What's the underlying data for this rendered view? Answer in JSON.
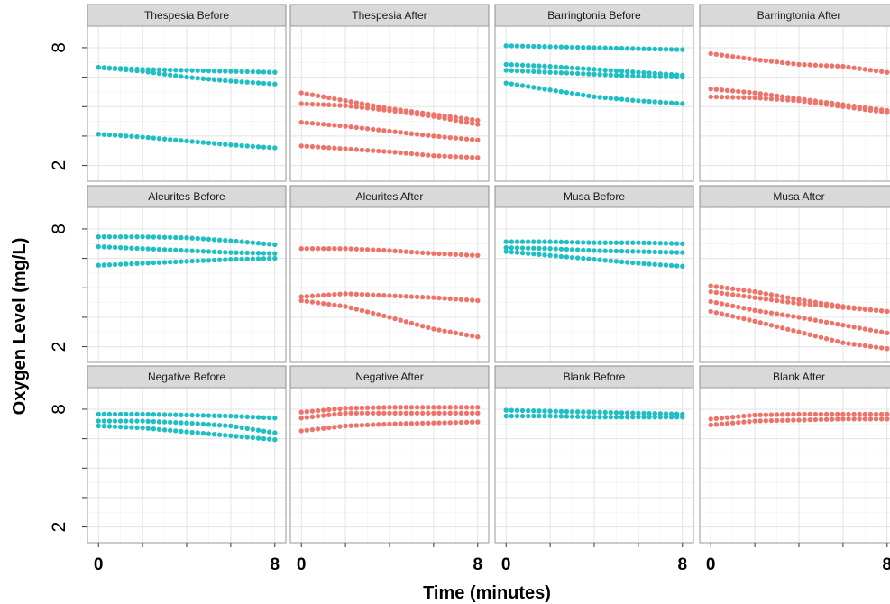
{
  "chart_data": {
    "type": "scatter",
    "xlabel": "Time (minutes)",
    "ylabel": "Oxygen Level (mg/L)",
    "xlim": [
      -0.5,
      8.5
    ],
    "ylim": [
      1.2,
      9.1
    ],
    "x_ticks_labeled": [
      0,
      8
    ],
    "x_ticks_all": [
      0,
      2,
      4,
      6,
      8
    ],
    "y_ticks_labeled": [
      2,
      8
    ],
    "y_ticks_all": [
      2,
      3.5,
      5,
      6.5,
      8
    ],
    "grid": true,
    "colors": {
      "Before": "#1fbfc3",
      "After": "#f0736a"
    },
    "panels": [
      {
        "title": "Thespesia Before",
        "condition": "Before",
        "series": [
          {
            "values": [
              [
                0,
                7.0
              ],
              [
                2,
                6.9
              ],
              [
                4,
                6.85
              ],
              [
                6,
                6.8
              ],
              [
                8,
                6.75
              ]
            ]
          },
          {
            "values": [
              [
                0,
                7.0
              ],
              [
                2,
                6.8
              ],
              [
                4,
                6.5
              ],
              [
                6,
                6.3
              ],
              [
                8,
                6.15
              ]
            ]
          },
          {
            "values": [
              [
                0,
                3.6
              ],
              [
                2,
                3.45
              ],
              [
                4,
                3.25
              ],
              [
                6,
                3.05
              ],
              [
                8,
                2.9
              ]
            ]
          }
        ]
      },
      {
        "title": "Thespesia After",
        "condition": "After",
        "series": [
          {
            "values": [
              [
                0,
                5.7
              ],
              [
                2,
                5.3
              ],
              [
                4,
                4.9
              ],
              [
                6,
                4.6
              ],
              [
                8,
                4.3
              ]
            ]
          },
          {
            "values": [
              [
                0,
                5.15
              ],
              [
                2,
                5.05
              ],
              [
                4,
                4.8
              ],
              [
                6,
                4.5
              ],
              [
                8,
                4.1
              ]
            ]
          },
          {
            "values": [
              [
                0,
                4.2
              ],
              [
                2,
                4.0
              ],
              [
                4,
                3.75
              ],
              [
                6,
                3.5
              ],
              [
                8,
                3.3
              ]
            ]
          },
          {
            "values": [
              [
                0,
                3.0
              ],
              [
                2,
                2.85
              ],
              [
                4,
                2.7
              ],
              [
                6,
                2.5
              ],
              [
                8,
                2.4
              ]
            ]
          }
        ]
      },
      {
        "title": "Barringtonia Before",
        "condition": "Before",
        "series": [
          {
            "values": [
              [
                0,
                8.1
              ],
              [
                2,
                8.05
              ],
              [
                4,
                8.0
              ],
              [
                6,
                7.95
              ],
              [
                8,
                7.9
              ]
            ]
          },
          {
            "values": [
              [
                0,
                7.15
              ],
              [
                2,
                7.05
              ],
              [
                4,
                6.9
              ],
              [
                6,
                6.75
              ],
              [
                8,
                6.6
              ]
            ]
          },
          {
            "values": [
              [
                0,
                6.85
              ],
              [
                2,
                6.75
              ],
              [
                4,
                6.65
              ],
              [
                6,
                6.55
              ],
              [
                8,
                6.5
              ]
            ]
          },
          {
            "values": [
              [
                0,
                6.2
              ],
              [
                2,
                5.85
              ],
              [
                4,
                5.5
              ],
              [
                6,
                5.3
              ],
              [
                8,
                5.15
              ]
            ]
          }
        ]
      },
      {
        "title": "Barringtonia After",
        "condition": "After",
        "series": [
          {
            "values": [
              [
                0,
                7.7
              ],
              [
                2,
                7.4
              ],
              [
                4,
                7.15
              ],
              [
                6,
                7.05
              ],
              [
                8,
                6.75
              ]
            ]
          },
          {
            "values": [
              [
                0,
                5.9
              ],
              [
                2,
                5.7
              ],
              [
                4,
                5.4
              ],
              [
                6,
                5.1
              ],
              [
                8,
                4.8
              ]
            ]
          },
          {
            "values": [
              [
                0,
                5.5
              ],
              [
                2,
                5.45
              ],
              [
                4,
                5.3
              ],
              [
                6,
                5.0
              ],
              [
                8,
                4.7
              ]
            ]
          }
        ]
      },
      {
        "title": "Aleurites Before",
        "condition": "Before",
        "series": [
          {
            "values": [
              [
                0,
                7.6
              ],
              [
                2,
                7.6
              ],
              [
                4,
                7.55
              ],
              [
                6,
                7.4
              ],
              [
                8,
                7.2
              ]
            ]
          },
          {
            "values": [
              [
                0,
                7.1
              ],
              [
                2,
                7.0
              ],
              [
                4,
                6.9
              ],
              [
                6,
                6.8
              ],
              [
                8,
                6.75
              ]
            ]
          },
          {
            "values": [
              [
                0,
                6.15
              ],
              [
                2,
                6.25
              ],
              [
                4,
                6.35
              ],
              [
                6,
                6.45
              ],
              [
                8,
                6.5
              ]
            ]
          }
        ]
      },
      {
        "title": "Aleurites After",
        "condition": "After",
        "series": [
          {
            "values": [
              [
                0,
                7.0
              ],
              [
                2,
                7.0
              ],
              [
                4,
                6.9
              ],
              [
                6,
                6.75
              ],
              [
                8,
                6.65
              ]
            ]
          },
          {
            "values": [
              [
                0,
                4.55
              ],
              [
                2,
                4.7
              ],
              [
                4,
                4.6
              ],
              [
                6,
                4.5
              ],
              [
                8,
                4.35
              ]
            ]
          },
          {
            "values": [
              [
                0,
                4.35
              ],
              [
                2,
                4.05
              ],
              [
                4,
                3.5
              ],
              [
                6,
                2.9
              ],
              [
                8,
                2.5
              ]
            ]
          }
        ]
      },
      {
        "title": "Musa Before",
        "condition": "Before",
        "series": [
          {
            "values": [
              [
                0,
                7.35
              ],
              [
                2,
                7.35
              ],
              [
                4,
                7.3
              ],
              [
                6,
                7.3
              ],
              [
                8,
                7.25
              ]
            ]
          },
          {
            "values": [
              [
                0,
                7.05
              ],
              [
                2,
                7.0
              ],
              [
                4,
                6.9
              ],
              [
                6,
                6.85
              ],
              [
                8,
                6.8
              ]
            ]
          },
          {
            "values": [
              [
                0,
                6.85
              ],
              [
                2,
                6.65
              ],
              [
                4,
                6.45
              ],
              [
                6,
                6.25
              ],
              [
                8,
                6.1
              ]
            ]
          }
        ]
      },
      {
        "title": "Musa After",
        "condition": "After",
        "series": [
          {
            "values": [
              [
                0,
                5.1
              ],
              [
                2,
                4.8
              ],
              [
                4,
                4.4
              ],
              [
                6,
                4.05
              ],
              [
                8,
                3.8
              ]
            ]
          },
          {
            "values": [
              [
                0,
                4.8
              ],
              [
                2,
                4.5
              ],
              [
                4,
                4.2
              ],
              [
                6,
                4.0
              ],
              [
                8,
                3.8
              ]
            ]
          },
          {
            "values": [
              [
                0,
                4.3
              ],
              [
                2,
                3.85
              ],
              [
                4,
                3.5
              ],
              [
                6,
                3.1
              ],
              [
                8,
                2.7
              ]
            ]
          },
          {
            "values": [
              [
                0,
                3.8
              ],
              [
                2,
                3.3
              ],
              [
                4,
                2.75
              ],
              [
                6,
                2.2
              ],
              [
                8,
                1.9
              ]
            ]
          }
        ]
      },
      {
        "title": "Negative Before",
        "condition": "Before",
        "series": [
          {
            "values": [
              [
                0,
                7.75
              ],
              [
                2,
                7.75
              ],
              [
                4,
                7.7
              ],
              [
                6,
                7.65
              ],
              [
                8,
                7.55
              ]
            ]
          },
          {
            "values": [
              [
                0,
                7.4
              ],
              [
                2,
                7.4
              ],
              [
                4,
                7.3
              ],
              [
                6,
                7.15
              ],
              [
                8,
                6.8
              ]
            ]
          },
          {
            "values": [
              [
                0,
                7.15
              ],
              [
                2,
                7.05
              ],
              [
                4,
                6.85
              ],
              [
                6,
                6.65
              ],
              [
                8,
                6.45
              ]
            ]
          }
        ]
      },
      {
        "title": "Negative After",
        "condition": "After",
        "series": [
          {
            "values": [
              [
                0,
                7.85
              ],
              [
                2,
                8.05
              ],
              [
                4,
                8.1
              ],
              [
                6,
                8.1
              ],
              [
                8,
                8.1
              ]
            ]
          },
          {
            "values": [
              [
                0,
                7.55
              ],
              [
                2,
                7.8
              ],
              [
                4,
                7.8
              ],
              [
                6,
                7.8
              ],
              [
                8,
                7.8
              ]
            ]
          },
          {
            "values": [
              [
                0,
                6.9
              ],
              [
                2,
                7.15
              ],
              [
                4,
                7.25
              ],
              [
                6,
                7.3
              ],
              [
                8,
                7.35
              ]
            ]
          }
        ]
      },
      {
        "title": "Blank Before",
        "condition": "Before",
        "series": [
          {
            "values": [
              [
                0,
                7.95
              ],
              [
                2,
                7.9
              ],
              [
                4,
                7.85
              ],
              [
                6,
                7.8
              ],
              [
                8,
                7.75
              ]
            ]
          },
          {
            "values": [
              [
                0,
                7.65
              ],
              [
                2,
                7.65
              ],
              [
                4,
                7.6
              ],
              [
                6,
                7.6
              ],
              [
                8,
                7.6
              ]
            ]
          }
        ]
      },
      {
        "title": "Blank After",
        "condition": "After",
        "series": [
          {
            "values": [
              [
                0,
                7.5
              ],
              [
                2,
                7.7
              ],
              [
                4,
                7.75
              ],
              [
                6,
                7.75
              ],
              [
                8,
                7.75
              ]
            ]
          },
          {
            "values": [
              [
                0,
                7.2
              ],
              [
                2,
                7.4
              ],
              [
                4,
                7.45
              ],
              [
                6,
                7.5
              ],
              [
                8,
                7.5
              ]
            ]
          }
        ]
      }
    ]
  }
}
